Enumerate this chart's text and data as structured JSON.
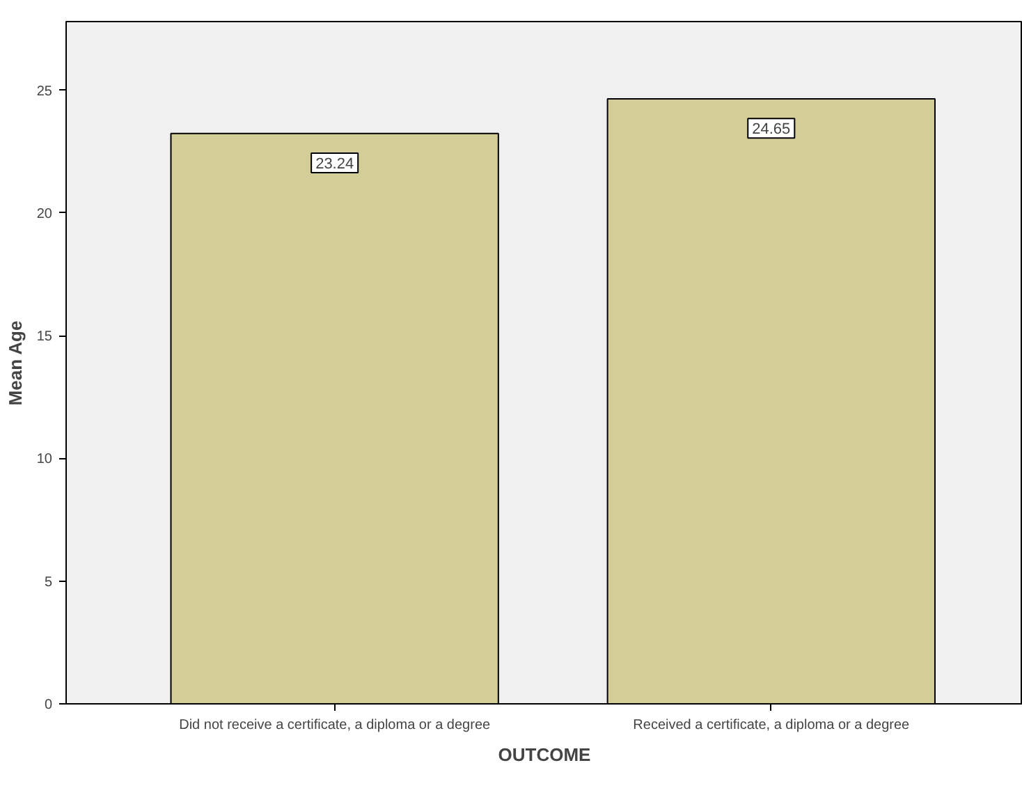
{
  "chart_data": {
    "type": "bar",
    "xlabel": "OUTCOME",
    "ylabel": "Mean Age",
    "categories": [
      "Did not receive a certificate, a diploma or a degree",
      "Received a certificate, a diploma or a degree"
    ],
    "values": [
      23.24,
      24.65
    ],
    "color": "#d3cd98",
    "ylim": [
      0,
      27.8
    ],
    "yticks": [
      0,
      5,
      10,
      15,
      20,
      25
    ],
    "grid": false,
    "data_labels": true
  }
}
